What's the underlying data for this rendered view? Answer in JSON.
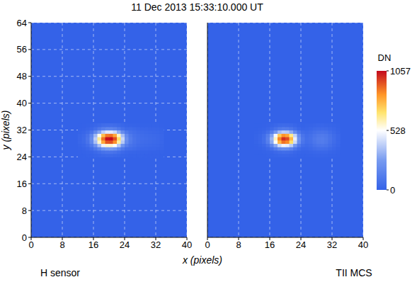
{
  "title": "11 Dec 2013 15:33:10.000 UT",
  "x_label": "x (pixels)",
  "colorbar": {
    "label": "DN",
    "range": [
      0,
      1057
    ],
    "ticks": [
      0,
      528,
      1057
    ]
  },
  "chart_data": [
    {
      "type": "heatmap",
      "title": "H sensor",
      "y_label": "y (pixels)",
      "xlim": [
        0,
        40
      ],
      "ylim": [
        0,
        64
      ],
      "xticks": [
        0,
        8,
        16,
        24,
        32,
        40
      ],
      "yticks": [
        0,
        8,
        16,
        24,
        32,
        40,
        48,
        56,
        64
      ],
      "grid": true,
      "cells": {
        "x": [
          12,
          13,
          14,
          15,
          16,
          17,
          18,
          19,
          20,
          21,
          22,
          23,
          24,
          25,
          26,
          27,
          28,
          29,
          30,
          31,
          32,
          33
        ],
        "y": [
          24,
          25,
          26,
          27,
          28,
          29,
          30,
          31,
          32,
          33
        ],
        "z": [
          [
            1,
            1,
            3,
            6,
            12,
            20,
            27,
            32,
            32,
            29,
            21,
            13,
            7,
            5,
            4,
            3,
            3,
            2,
            2,
            2,
            2,
            1
          ],
          [
            2,
            3,
            7,
            16,
            32,
            52,
            72,
            84,
            85,
            76,
            56,
            34,
            20,
            15,
            12,
            10,
            8,
            7,
            6,
            5,
            5,
            4
          ],
          [
            5,
            10,
            22,
            50,
            100,
            160,
            225,
            260,
            265,
            240,
            175,
            105,
            60,
            50,
            40,
            30,
            25,
            22,
            20,
            18,
            15,
            10
          ],
          [
            11,
            22,
            50,
            110,
            220,
            360,
            495,
            580,
            580,
            520,
            385,
            230,
            130,
            80,
            64,
            48,
            40,
            36,
            32,
            28,
            24,
            16
          ],
          [
            18,
            36,
            80,
            180,
            360,
            585,
            810,
            945,
            950,
            855,
            630,
            380,
            200,
            110,
            75,
            57,
            48,
            43,
            38,
            33,
            28,
            19
          ],
          [
            20,
            40,
            90,
            200,
            400,
            650,
            900,
            1050,
            1057,
            950,
            700,
            420,
            220,
            120,
            80,
            60,
            50,
            45,
            40,
            35,
            30,
            20
          ],
          [
            17,
            34,
            76,
            170,
            340,
            550,
            765,
            890,
            900,
            810,
            595,
            360,
            190,
            105,
            70,
            54,
            45,
            40,
            36,
            31,
            27,
            18
          ],
          [
            9,
            18,
            40,
            90,
            180,
            290,
            405,
            470,
            475,
            430,
            315,
            190,
            110,
            70,
            56,
            42,
            35,
            31,
            28,
            25,
            21,
            14
          ],
          [
            3,
            6,
            14,
            30,
            60,
            100,
            135,
            160,
            160,
            145,
            105,
            65,
            40,
            40,
            32,
            24,
            20,
            18,
            16,
            14,
            12,
            8
          ],
          [
            1,
            2,
            5,
            10,
            20,
            32,
            45,
            52,
            53,
            48,
            35,
            21,
            12,
            10,
            8,
            6,
            5,
            5,
            4,
            4,
            3,
            2
          ]
        ]
      }
    },
    {
      "type": "heatmap",
      "title": "TII MCS",
      "tick_labels": "x",
      "xlim": [
        0,
        40
      ],
      "ylim": [
        0,
        64
      ],
      "xticks": [
        0,
        8,
        16,
        24,
        32,
        40
      ],
      "yticks": [
        0,
        8,
        16,
        24,
        32,
        40,
        48,
        56,
        64
      ],
      "grid": true,
      "cells": {
        "x": [
          12,
          13,
          14,
          15,
          16,
          17,
          18,
          19,
          20,
          21,
          22,
          23,
          24,
          25,
          26,
          27,
          28,
          29,
          30,
          31,
          32,
          33
        ],
        "y": [
          24,
          25,
          26,
          27,
          28,
          29,
          30,
          31,
          32,
          33
        ],
        "z": [
          [
            0,
            0,
            1,
            3,
            7,
            12,
            17,
            20,
            19,
            16,
            10,
            5,
            3,
            4,
            6,
            8,
            10,
            10,
            9,
            6,
            4,
            2
          ],
          [
            1,
            1,
            3,
            8,
            16,
            30,
            43,
            50,
            48,
            39,
            24,
            12,
            7,
            10,
            14,
            20,
            24,
            25,
            22,
            16,
            10,
            5
          ],
          [
            2,
            5,
            12,
            30,
            65,
            120,
            175,
            200,
            190,
            155,
            95,
            46,
            25,
            22,
            32,
            45,
            54,
            56,
            50,
            36,
            23,
            11
          ],
          [
            5,
            12,
            30,
            75,
            165,
            300,
            435,
            500,
            480,
            390,
            240,
            115,
            55,
            40,
            52,
            75,
            90,
            94,
            82,
            60,
            38,
            19
          ],
          [
            9,
            22,
            54,
            135,
            300,
            540,
            780,
            900,
            865,
            700,
            430,
            210,
            90,
            55,
            66,
            95,
            115,
            120,
            105,
            75,
            48,
            24
          ],
          [
            10,
            25,
            60,
            150,
            330,
            600,
            870,
            1000,
            960,
            780,
            480,
            230,
            100,
            60,
            70,
            100,
            120,
            125,
            110,
            80,
            50,
            25
          ],
          [
            8,
            21,
            51,
            128,
            280,
            510,
            740,
            850,
            815,
            660,
            410,
            195,
            85,
            52,
            63,
            90,
            108,
            112,
            100,
            72,
            45,
            22
          ],
          [
            4,
            10,
            24,
            60,
            130,
            240,
            350,
            400,
            385,
            310,
            190,
            92,
            45,
            35,
            45,
            65,
            78,
            81,
            72,
            52,
            33,
            16
          ],
          [
            1,
            3,
            7,
            18,
            40,
            72,
            105,
            120,
            115,
            94,
            58,
            28,
            15,
            17,
            25,
            35,
            42,
            44,
            38,
            28,
            18,
            9
          ],
          [
            0,
            1,
            2,
            6,
            13,
            24,
            35,
            40,
            38,
            31,
            19,
            9,
            5,
            7,
            11,
            15,
            18,
            19,
            16,
            12,
            8,
            4
          ]
        ]
      }
    }
  ]
}
